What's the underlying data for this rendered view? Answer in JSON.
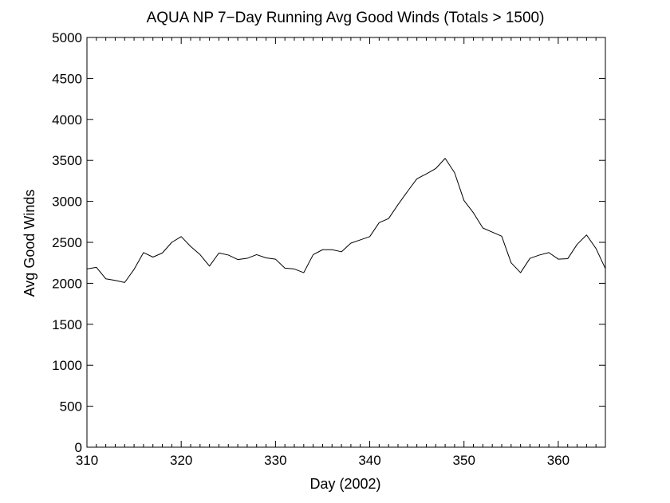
{
  "chart_data": {
    "type": "line",
    "title": "AQUA NP 7−Day Running Avg Good Winds (Totals > 1500)",
    "xlabel": "Day (2002)",
    "ylabel": "Avg Good Winds",
    "xlim": [
      310,
      365
    ],
    "ylim": [
      0,
      5000
    ],
    "xticks": [
      310,
      320,
      330,
      340,
      350,
      360
    ],
    "yticks": [
      0,
      500,
      1000,
      1500,
      2000,
      2500,
      3000,
      3500,
      4000,
      4500,
      5000
    ],
    "grid": false,
    "line_color": "#000000",
    "series": [
      {
        "x": [
          310,
          311,
          312,
          313,
          314,
          315,
          316,
          317,
          318,
          319,
          320,
          321,
          322,
          323,
          324,
          325,
          326,
          327,
          328,
          329,
          330,
          331,
          332,
          333,
          334,
          335,
          336,
          337,
          338,
          339,
          340,
          341,
          342,
          343,
          344,
          345,
          346,
          347,
          348,
          349,
          350,
          351,
          352,
          353,
          354,
          355,
          356,
          357,
          358,
          359,
          360,
          361,
          362,
          363,
          364,
          365
        ],
        "values": [
          2175,
          2195,
          2055,
          2035,
          2010,
          2170,
          2375,
          2320,
          2370,
          2500,
          2570,
          2450,
          2350,
          2210,
          2370,
          2345,
          2290,
          2305,
          2350,
          2310,
          2295,
          2185,
          2175,
          2130,
          2350,
          2410,
          2410,
          2385,
          2490,
          2530,
          2570,
          2740,
          2790,
          2960,
          3120,
          3275,
          3335,
          3400,
          3525,
          3350,
          3010,
          2860,
          2675,
          2625,
          2575,
          2250,
          2130,
          2305,
          2345,
          2375,
          2295,
          2300,
          2475,
          2590,
          2425,
          2180
        ]
      }
    ]
  }
}
